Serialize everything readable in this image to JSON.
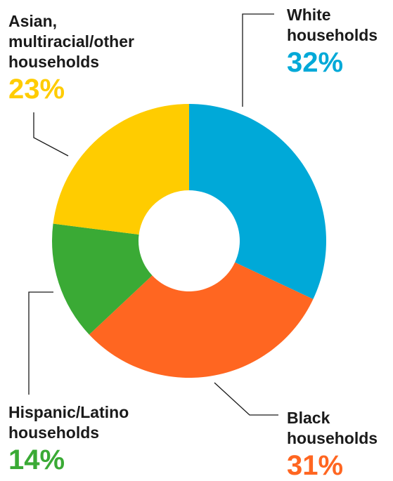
{
  "chart_data": {
    "type": "pie",
    "donut": true,
    "slices": [
      {
        "label_lines": [
          "White",
          "households"
        ],
        "value": 32,
        "display": "32%",
        "color": "#00a9d8"
      },
      {
        "label_lines": [
          "Black",
          "households"
        ],
        "value": 31,
        "display": "31%",
        "color": "#ff6621"
      },
      {
        "label_lines": [
          "Hispanic/Latino",
          "households"
        ],
        "value": 14,
        "display": "14%",
        "color": "#3aaa35"
      },
      {
        "label_lines": [
          "Asian,",
          "multiracial/other",
          "households"
        ],
        "value": 23,
        "display": "23%",
        "color": "#ffcc00"
      }
    ]
  }
}
